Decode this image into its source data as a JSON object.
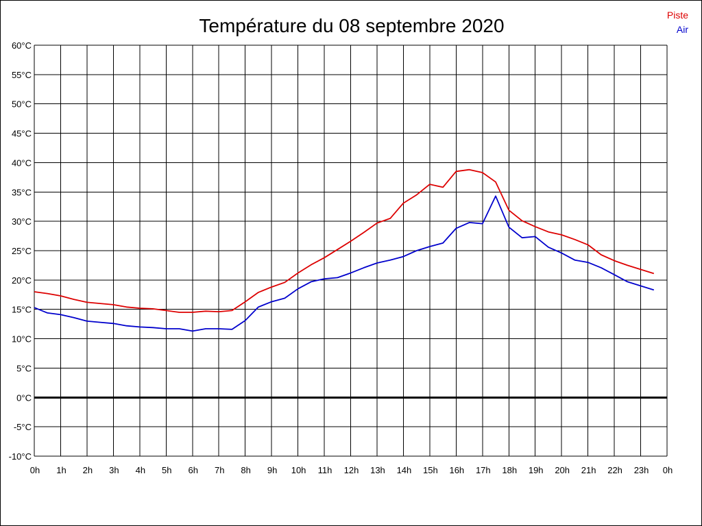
{
  "chart_data": {
    "type": "line",
    "title": "Température du 08 septembre 2020",
    "xlabel": "",
    "ylabel": "",
    "y_unit": "°C",
    "ylim": [
      -10,
      60
    ],
    "y_ticks": [
      60,
      55,
      50,
      45,
      40,
      35,
      30,
      25,
      20,
      15,
      10,
      5,
      0,
      -5,
      -10
    ],
    "y_tick_labels": [
      "60°C",
      "55°C",
      "50°C",
      "45°C",
      "40°C",
      "35°C",
      "30°C",
      "25°C",
      "20°C",
      "15°C",
      "10°C",
      "5°C",
      "0°C",
      "-5°C",
      "-10°C"
    ],
    "xlim": [
      0,
      24
    ],
    "x_unit": "hour",
    "x_ticks": [
      0,
      1,
      2,
      3,
      4,
      5,
      6,
      7,
      8,
      9,
      10,
      11,
      12,
      13,
      14,
      15,
      16,
      17,
      18,
      19,
      20,
      21,
      22,
      23,
      24
    ],
    "x_tick_labels": [
      "0h",
      "1h",
      "2h",
      "3h",
      "4h",
      "5h",
      "6h",
      "7h",
      "8h",
      "9h",
      "10h",
      "11h",
      "12h",
      "13h",
      "14h",
      "15h",
      "16h",
      "17h",
      "18h",
      "19h",
      "20h",
      "21h",
      "22h",
      "23h",
      "0h"
    ],
    "grid": true,
    "zero_line": true,
    "legend": "top-right",
    "series": [
      {
        "name": "Piste",
        "color": "#dd0000",
        "x": [
          0,
          0.5,
          1,
          1.5,
          2,
          2.5,
          3,
          3.5,
          4,
          4.5,
          5,
          5.5,
          6,
          6.5,
          7,
          7.5,
          8,
          8.5,
          9,
          9.5,
          10,
          10.5,
          11,
          11.5,
          12,
          12.5,
          13,
          13.5,
          14,
          14.5,
          15,
          15.5,
          16,
          16.5,
          17,
          17.5,
          18,
          18.5,
          19,
          19.5,
          20,
          20.5,
          21,
          21.5,
          22,
          22.5,
          23,
          23.5
        ],
        "values": [
          18.0,
          17.7,
          17.3,
          16.7,
          16.2,
          16.0,
          15.8,
          15.4,
          15.2,
          15.1,
          14.8,
          14.5,
          14.5,
          14.7,
          14.6,
          14.8,
          16.3,
          17.9,
          18.8,
          19.6,
          21.2,
          22.6,
          23.8,
          25.2,
          26.6,
          28.1,
          29.7,
          30.5,
          33.1,
          34.5,
          36.3,
          35.8,
          38.5,
          38.8,
          38.3,
          36.7,
          31.9,
          30.1,
          29.1,
          28.2,
          27.7,
          26.9,
          26.0,
          24.3,
          23.3,
          22.5,
          21.8,
          21.1
        ]
      },
      {
        "name": "Air",
        "color": "#0000cc",
        "x": [
          0,
          0.5,
          1,
          1.5,
          2,
          2.5,
          3,
          3.5,
          4,
          4.5,
          5,
          5.5,
          6,
          6.5,
          7,
          7.5,
          8,
          8.5,
          9,
          9.5,
          10,
          10.5,
          11,
          11.5,
          12,
          12.5,
          13,
          13.5,
          14,
          14.5,
          15,
          15.5,
          16,
          16.5,
          17,
          17.5,
          18,
          18.5,
          19,
          19.5,
          20,
          20.5,
          21,
          21.5,
          22,
          22.5,
          23,
          23.5
        ],
        "values": [
          15.3,
          14.4,
          14.1,
          13.6,
          13.0,
          12.8,
          12.6,
          12.2,
          12.0,
          11.9,
          11.7,
          11.7,
          11.3,
          11.7,
          11.7,
          11.6,
          13.1,
          15.4,
          16.3,
          16.9,
          18.5,
          19.7,
          20.2,
          20.4,
          21.2,
          22.1,
          22.9,
          23.4,
          24.0,
          25.0,
          25.7,
          26.3,
          28.8,
          29.8,
          29.6,
          34.3,
          29.0,
          27.2,
          27.4,
          25.6,
          24.6,
          23.4,
          23.0,
          22.1,
          20.9,
          19.7,
          19.0,
          18.3
        ]
      }
    ]
  }
}
